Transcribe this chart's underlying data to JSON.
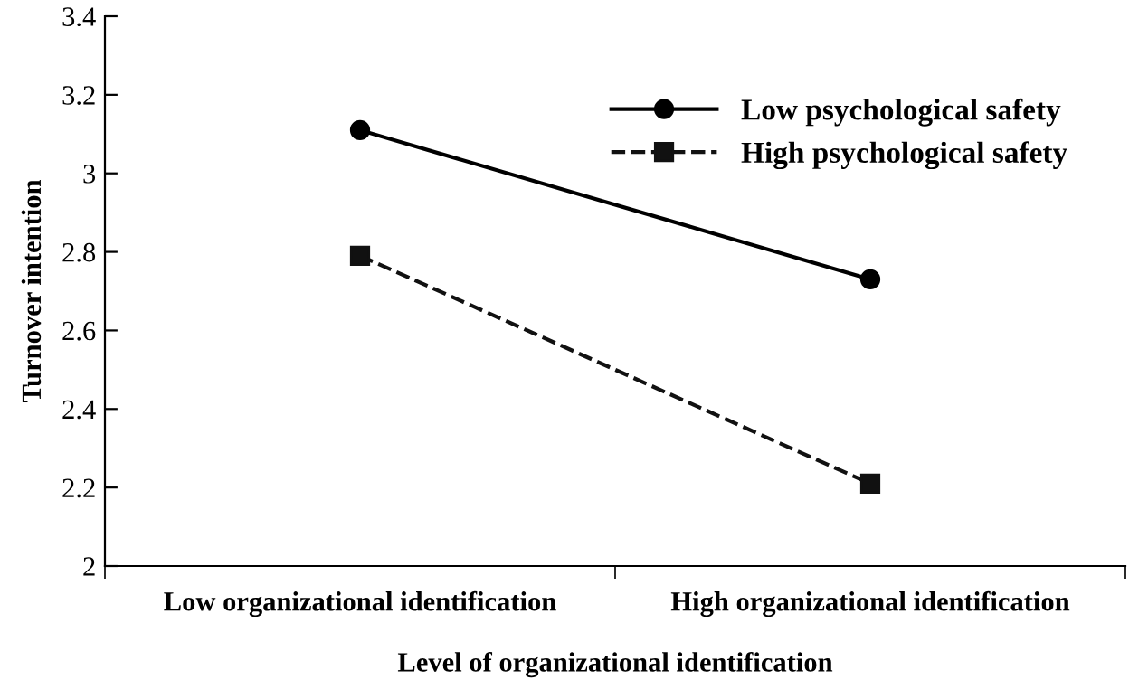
{
  "chart_data": {
    "type": "line",
    "xlabel": "Level of organizational identification",
    "ylabel": "Turnover intention",
    "categories": [
      "Low organizational identification",
      "High organizational identification"
    ],
    "series": [
      {
        "name": "Low psychological safety",
        "color": "#000000",
        "values": [
          3.11,
          2.73
        ],
        "marker": "circle",
        "line_style": "solid"
      },
      {
        "name": "High psychological safety",
        "color": "#111111",
        "values": [
          2.79,
          2.21
        ],
        "marker": "square",
        "line_style": "dashed"
      }
    ],
    "ylim": [
      2,
      3.4
    ],
    "yticks": [
      2,
      2.2,
      2.4,
      2.6,
      2.8,
      3,
      3.2,
      3.4
    ],
    "grid": false,
    "legend": "top right"
  }
}
